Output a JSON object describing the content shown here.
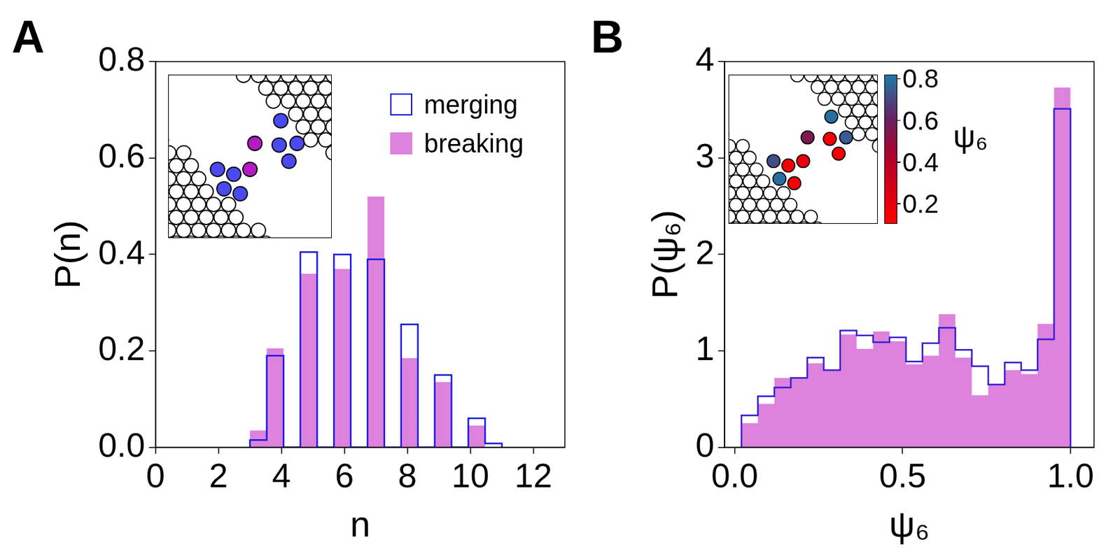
{
  "chart_data": [
    {
      "type": "histogram",
      "panel": "A",
      "x_label": "n",
      "y_label": "P(n)",
      "xlim": [
        0,
        13
      ],
      "xticks": [
        0,
        2,
        4,
        6,
        8,
        10,
        12
      ],
      "ylim": [
        0,
        0.8
      ],
      "yticks": [
        {
          "value": 0,
          "label": "0.0"
        },
        0.2,
        0.4,
        0.6,
        0.8
      ],
      "grid": false,
      "legend": "upper right",
      "bins": [
        3,
        3.533,
        4.067,
        4.6,
        5.133,
        5.667,
        6.2,
        6.733,
        7.267,
        7.8,
        8.333,
        8.867,
        9.4,
        9.933,
        10.467,
        11
      ],
      "series": [
        {
          "name": "merging",
          "type": "step",
          "color": "#1a1adf",
          "values": [
            0.015,
            0.19,
            0,
            0.405,
            0,
            0.4,
            0,
            0.39,
            0,
            0.255,
            0,
            0.15,
            0,
            0.06,
            0.008
          ]
        },
        {
          "name": "breaking",
          "type": "bar",
          "color": "#dd82dd",
          "values": [
            0.035,
            0.205,
            0,
            0.36,
            0,
            0.37,
            0,
            0.52,
            0,
            0.185,
            0,
            0.135,
            0,
            0.045,
            0
          ]
        }
      ]
    },
    {
      "type": "histogram",
      "panel": "B",
      "x_label": "ψ₆",
      "y_label": "P(ψ₆)",
      "xlim": [
        -0.03,
        1.07
      ],
      "xticks": [
        {
          "value": 0,
          "label": "0.0"
        },
        0.5,
        {
          "value": 1,
          "label": "1.0"
        }
      ],
      "ylim": [
        0,
        4
      ],
      "yticks": [
        0,
        1,
        2,
        3,
        4
      ],
      "grid": false,
      "bins": [
        0.02,
        0.069,
        0.118,
        0.167,
        0.216,
        0.265,
        0.314,
        0.363,
        0.412,
        0.461,
        0.51,
        0.559,
        0.608,
        0.657,
        0.706,
        0.755,
        0.804,
        0.853,
        0.902,
        0.951,
        1.0
      ],
      "series": [
        {
          "name": "merging",
          "type": "step",
          "color": "#3a1fd0",
          "values": [
            0.33,
            0.53,
            0.62,
            0.72,
            0.93,
            0.8,
            1.21,
            1.16,
            1.09,
            1.14,
            0.89,
            1.08,
            1.24,
            1.01,
            0.84,
            0.65,
            0.88,
            0.8,
            1.12,
            3.51
          ]
        },
        {
          "name": "breaking",
          "type": "bar",
          "color": "#dd82dd",
          "values": [
            0.25,
            0.45,
            0.72,
            0.72,
            0.87,
            0.8,
            1.17,
            1.02,
            1.2,
            1.1,
            0.86,
            0.95,
            1.38,
            0.93,
            0.54,
            0.65,
            0.8,
            0.76,
            1.28,
            3.73
          ]
        }
      ],
      "colorbar": {
        "label": "ψ₆",
        "range": [
          0.11,
          0.82
        ],
        "ticks": [
          0.2,
          0.4,
          0.6,
          0.8
        ]
      },
      "inset": {
        "psi6": [
          0.72,
          0.15,
          0.8,
          0.15,
          0.2,
          0.55,
          0.8,
          0.15,
          0.75,
          0.15
        ]
      }
    }
  ]
}
